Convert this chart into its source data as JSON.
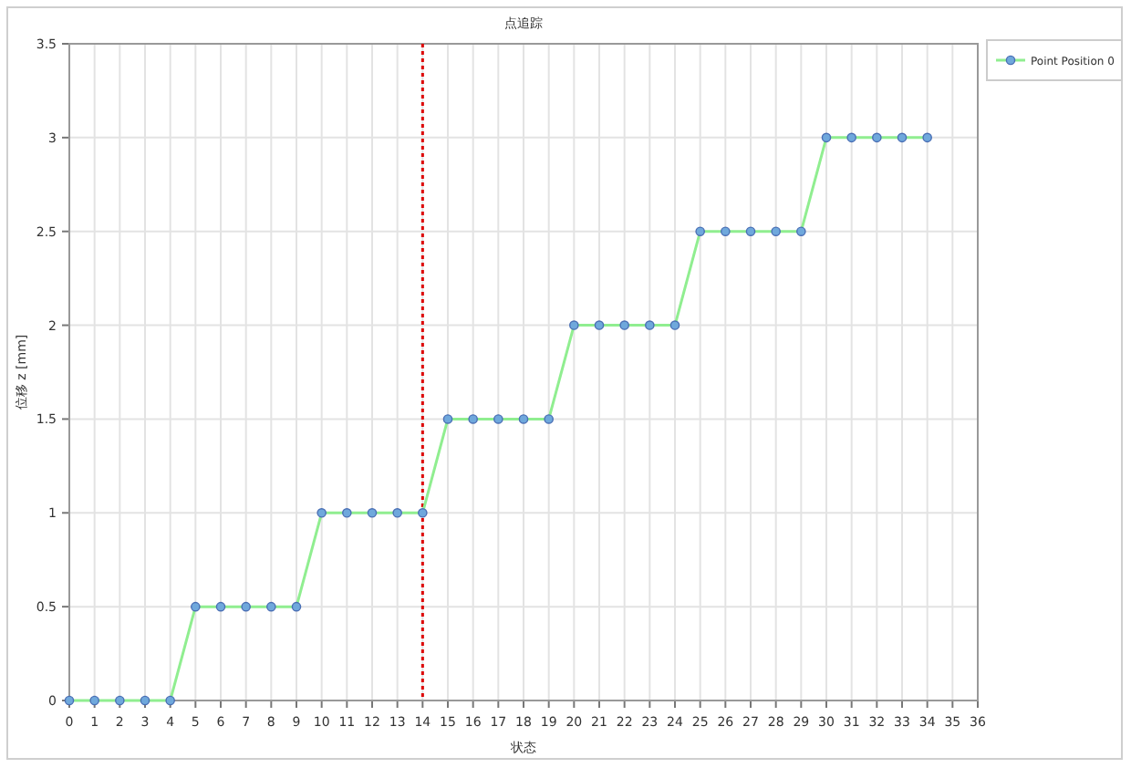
{
  "chart_data": {
    "type": "line",
    "title": "点追踪",
    "xlabel": "状态",
    "ylabel": "位移 z [mm]",
    "x": [
      0,
      1,
      2,
      3,
      4,
      5,
      6,
      7,
      8,
      9,
      10,
      11,
      12,
      13,
      14,
      15,
      16,
      17,
      18,
      19,
      20,
      21,
      22,
      23,
      24,
      25,
      26,
      27,
      28,
      29,
      30,
      31,
      32,
      33,
      34
    ],
    "series": [
      {
        "name": "Point Position 0",
        "color": "#90ee90",
        "values": [
          0,
          0,
          0,
          0,
          0,
          0.5,
          0.5,
          0.5,
          0.5,
          0.5,
          1,
          1,
          1,
          1,
          1,
          1.5,
          1.5,
          1.5,
          1.5,
          1.5,
          2,
          2,
          2,
          2,
          2,
          2.5,
          2.5,
          2.5,
          2.5,
          2.5,
          3,
          3,
          3,
          3,
          3
        ]
      }
    ],
    "xlim": [
      0,
      36
    ],
    "xticks": [
      0,
      1,
      2,
      3,
      4,
      5,
      6,
      7,
      8,
      9,
      10,
      11,
      12,
      13,
      14,
      15,
      16,
      17,
      18,
      19,
      20,
      21,
      22,
      23,
      24,
      25,
      26,
      27,
      28,
      29,
      30,
      31,
      32,
      33,
      34,
      35,
      36
    ],
    "ylim": [
      0,
      3.5
    ],
    "yticks": [
      0,
      {
        "value": 0.5,
        "label": "0.5"
      },
      1,
      {
        "value": 1.5,
        "label": "1.5"
      },
      2,
      {
        "value": 2.5,
        "label": "2.5"
      },
      3,
      {
        "value": 3.5,
        "label": "3.5"
      }
    ],
    "grid": true,
    "legend": "right",
    "marker": "circle",
    "line_style": "solid",
    "ref_lines": [
      {
        "axis": "x",
        "value": 14,
        "color": "#dd0000",
        "line_style": "dotted"
      }
    ]
  }
}
